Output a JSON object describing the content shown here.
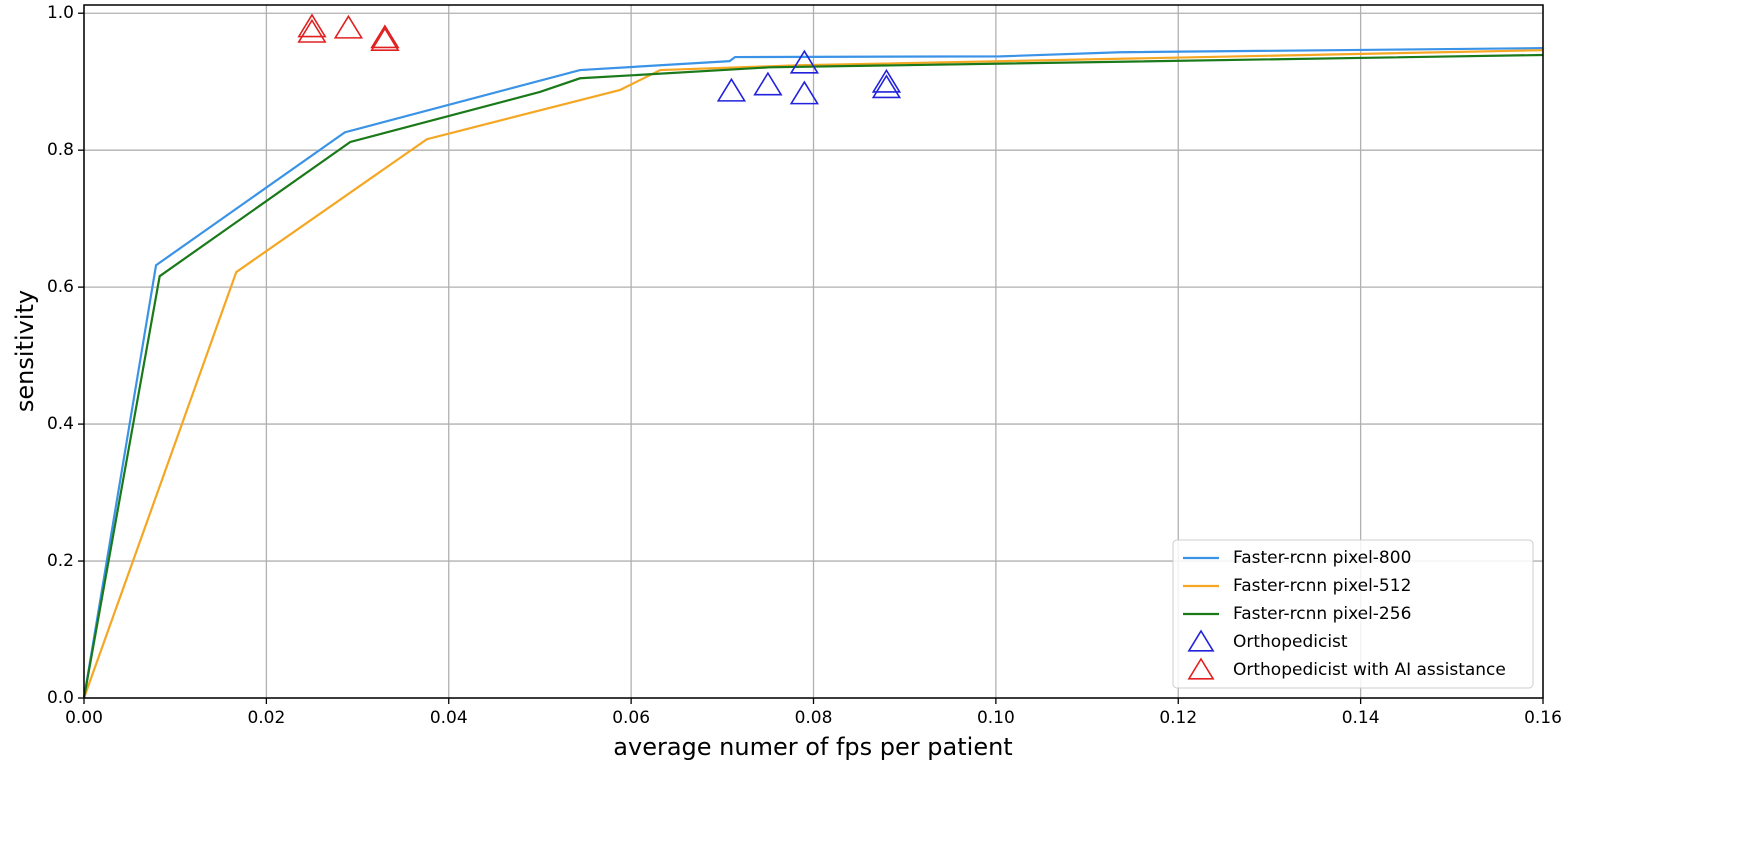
{
  "chart_data": {
    "type": "line",
    "x_label": "average numer of fps per patient",
    "y_label": "sensitivity",
    "xlim": [
      0,
      0.16
    ],
    "ylim": [
      0,
      1.012
    ],
    "xticks": [
      {
        "value": 0,
        "label": "0.00"
      },
      {
        "value": 0.02,
        "label": "0.02"
      },
      {
        "value": 0.04,
        "label": "0.04"
      },
      {
        "value": 0.06,
        "label": "0.06"
      },
      {
        "value": 0.08,
        "label": "0.08"
      },
      {
        "value": 0.1,
        "label": "0.10"
      },
      {
        "value": 0.12,
        "label": "0.12"
      },
      {
        "value": 0.14,
        "label": "0.14"
      },
      {
        "value": 0.16,
        "label": "0.16"
      }
    ],
    "yticks": [
      {
        "value": 0,
        "label": "0.0"
      },
      {
        "value": 0.2,
        "label": "0.2"
      },
      {
        "value": 0.4,
        "label": "0.4"
      },
      {
        "value": 0.6,
        "label": "0.6"
      },
      {
        "value": 0.8,
        "label": "0.8"
      },
      {
        "value": 1,
        "label": "1.0"
      }
    ],
    "grid": true,
    "legend": "lower right",
    "series": [
      {
        "name": "Faster-rcnn pixel-800",
        "type": "line",
        "color": "#3a93e6",
        "x": [
          0,
          0.0079,
          0.0286,
          0.0544,
          0.0708,
          0.0714,
          0.1005,
          0.1136,
          0.16
        ],
        "values": [
          0,
          0.632,
          0.826,
          0.917,
          0.93,
          0.936,
          0.937,
          0.943,
          0.949
        ]
      },
      {
        "name": "Faster-rcnn pixel-512",
        "type": "line",
        "color": "#f5a623",
        "x": [
          0,
          0.0167,
          0.0376,
          0.0588,
          0.0632,
          0.0785,
          0.16
        ],
        "values": [
          0,
          0.622,
          0.816,
          0.888,
          0.917,
          0.924,
          0.946
        ]
      },
      {
        "name": "Faster-rcnn pixel-256",
        "type": "line",
        "color": "#1a7a1a",
        "x": [
          0,
          0.0083,
          0.0292,
          0.05,
          0.0544,
          0.0752,
          0.16
        ],
        "values": [
          0,
          0.616,
          0.812,
          0.885,
          0.905,
          0.921,
          0.939
        ]
      },
      {
        "name": "Orthopedicist",
        "type": "scatter",
        "color": "#2222dd",
        "x": [
          0.071,
          0.075,
          0.079,
          0.079,
          0.088,
          0.088
        ],
        "values": [
          0.886,
          0.895,
          0.927,
          0.882,
          0.899,
          0.891
        ]
      },
      {
        "name": "Orthopedicist with AI assistance",
        "type": "scatter",
        "color": "#e02020",
        "x": [
          0.025,
          0.025,
          0.029,
          0.033,
          0.033
        ],
        "values": [
          0.98,
          0.972,
          0.978,
          0.964,
          0.96
        ]
      }
    ]
  }
}
